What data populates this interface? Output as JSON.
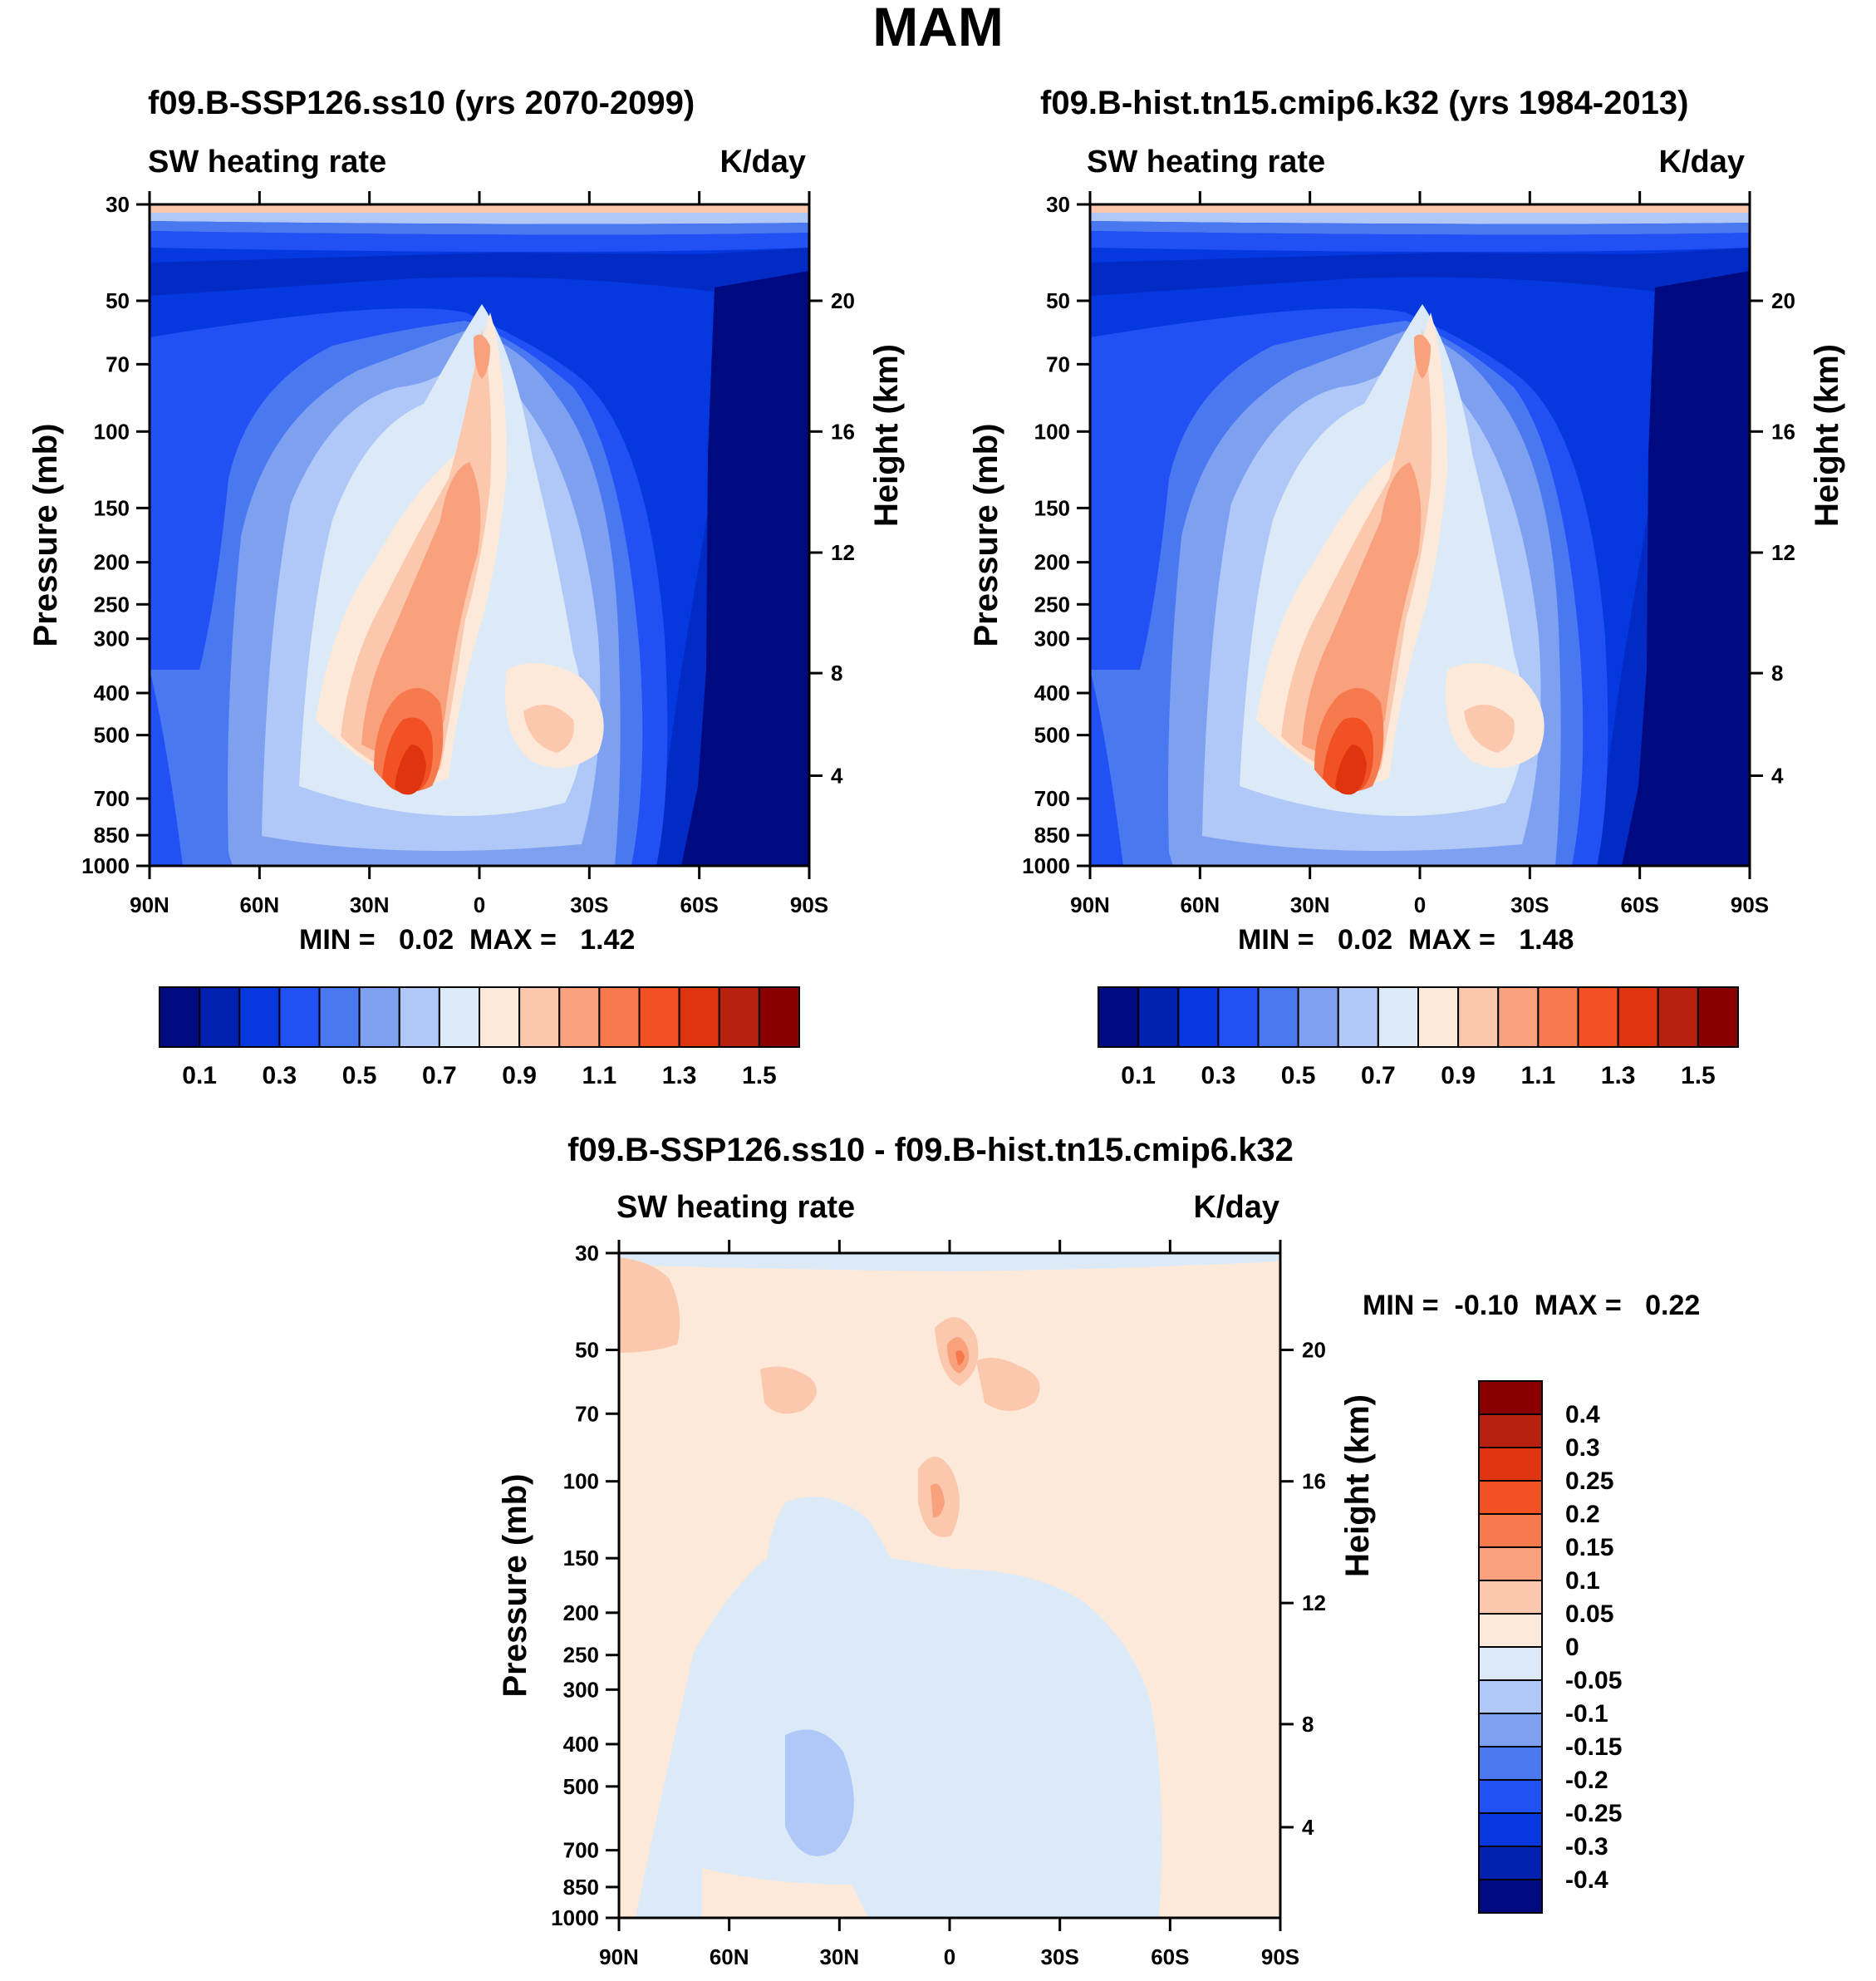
{
  "page": {
    "title": "MAM"
  },
  "panels": [
    {
      "id": "ssp",
      "title": "f09.B-SSP126.ss10 (yrs 2070-2099)",
      "left_label": "SW heating rate",
      "right_label": "K/day",
      "minmax": "MIN =   0.02  MAX =   1.42"
    },
    {
      "id": "hist",
      "title": "f09.B-hist.tn15.cmip6.k32 (yrs 1984-2013)",
      "left_label": "SW heating rate",
      "right_label": "K/day",
      "minmax": "MIN =   0.02  MAX =   1.48"
    },
    {
      "id": "diff",
      "title": "f09.B-SSP126.ss10 - f09.B-hist.tn15.cmip6.k32",
      "left_label": "SW heating rate",
      "right_label": "K/day",
      "minmax": "MIN =  -0.10  MAX =   0.22"
    }
  ],
  "chart_data": [
    {
      "type": "heatmap",
      "title": "f09.B-SSP126.ss10 (yrs 2070-2099)",
      "xlabel": "",
      "ylabel": "Pressure (mb)",
      "ylabel_right": "Height (km)",
      "x_ticks": [
        "90N",
        "60N",
        "30N",
        "0",
        "30S",
        "60S",
        "90S"
      ],
      "y_ticks": [
        "30",
        "50",
        "70",
        "100",
        "150",
        "200",
        "250",
        "300",
        "400",
        "500",
        "700",
        "850",
        "1000"
      ],
      "y_ticks_right": [
        "20",
        "16",
        "12",
        "8",
        "4"
      ],
      "xlim": [
        90,
        -90
      ],
      "ylim": [
        1000,
        30
      ],
      "min": 0.02,
      "max": 1.42,
      "units": "K/day"
    },
    {
      "type": "heatmap",
      "title": "f09.B-hist.tn15.cmip6.k32 (yrs 1984-2013)",
      "xlabel": "",
      "ylabel": "Pressure (mb)",
      "ylabel_right": "Height (km)",
      "x_ticks": [
        "90N",
        "60N",
        "30N",
        "0",
        "30S",
        "60S",
        "90S"
      ],
      "y_ticks": [
        "30",
        "50",
        "70",
        "100",
        "150",
        "200",
        "250",
        "300",
        "400",
        "500",
        "700",
        "850",
        "1000"
      ],
      "y_ticks_right": [
        "20",
        "16",
        "12",
        "8",
        "4"
      ],
      "xlim": [
        90,
        -90
      ],
      "ylim": [
        1000,
        30
      ],
      "min": 0.02,
      "max": 1.48,
      "units": "K/day"
    },
    {
      "type": "heatmap",
      "title": "f09.B-SSP126.ss10 - f09.B-hist.tn15.cmip6.k32",
      "xlabel": "",
      "ylabel": "Pressure (mb)",
      "ylabel_right": "Height (km)",
      "x_ticks": [
        "90N",
        "60N",
        "30N",
        "0",
        "30S",
        "60S",
        "90S"
      ],
      "y_ticks": [
        "30",
        "50",
        "70",
        "100",
        "150",
        "200",
        "250",
        "300",
        "400",
        "500",
        "700",
        "850",
        "1000"
      ],
      "y_ticks_right": [
        "20",
        "16",
        "12",
        "8",
        "4"
      ],
      "xlim": [
        90,
        -90
      ],
      "ylim": [
        1000,
        30
      ],
      "min": -0.1,
      "max": 0.22,
      "units": "K/day"
    }
  ],
  "colorbars": {
    "main": {
      "colors": [
        "#000a80",
        "#0021b0",
        "#0538de",
        "#2150f4",
        "#4a78f0",
        "#7ea0f0",
        "#b0c8f8",
        "#dceaf8",
        "#fde9d9",
        "#fcc8ad",
        "#f9a17d",
        "#f77a4e",
        "#f25124",
        "#e03410",
        "#b82010",
        "#8a0000"
      ],
      "labels": [
        "0.1",
        "0.3",
        "0.5",
        "0.7",
        "0.9",
        "1.1",
        "1.3",
        "1.5"
      ]
    },
    "diff": {
      "colors_top_to_bottom": [
        "#8a0000",
        "#b82010",
        "#e03410",
        "#f25124",
        "#f77a4e",
        "#f9a17d",
        "#fcc8ad",
        "#fde9d9",
        "#dceaf8",
        "#b0c8f8",
        "#7ea0f0",
        "#4a78f0",
        "#2150f4",
        "#0538de",
        "#0021b0",
        "#000a80"
      ],
      "labels": [
        "0.4",
        "0.3",
        "0.25",
        "0.2",
        "0.15",
        "0.1",
        "0.05",
        "0",
        "-0.05",
        "-0.1",
        "-0.15",
        "-0.2",
        "-0.25",
        "-0.3",
        "-0.4"
      ]
    }
  }
}
